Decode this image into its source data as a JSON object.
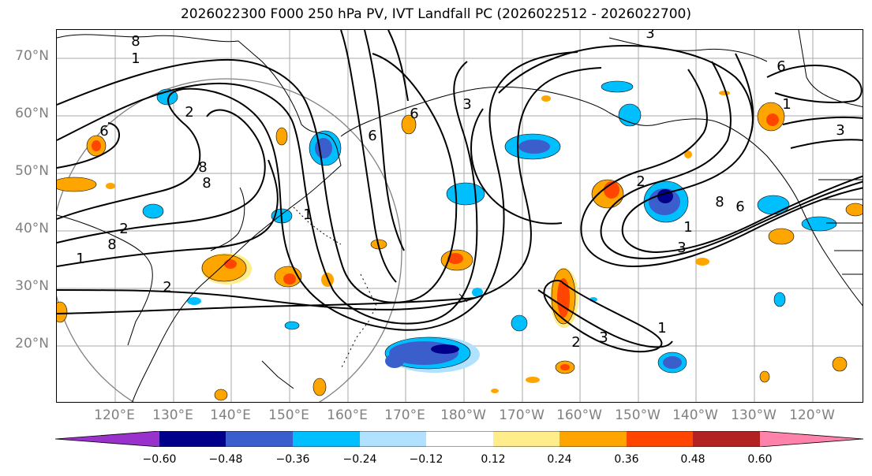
{
  "title": "2026022300 F000 250 hPa PV, IVT Landfall PC (2026022512 - 2026022700)",
  "map": {
    "latitude_labels": [
      "70°N",
      "60°N",
      "50°N",
      "40°N",
      "30°N",
      "20°N"
    ],
    "longitude_labels": [
      "120°E",
      "130°E",
      "140°E",
      "150°E",
      "160°E",
      "170°E",
      "180°W",
      "170°W",
      "160°W",
      "150°W",
      "140°W",
      "130°W",
      "120°W"
    ],
    "contour_labels": [
      {
        "text": "8"
      },
      {
        "text": "1"
      },
      {
        "text": "2"
      },
      {
        "text": "6"
      },
      {
        "text": "8"
      },
      {
        "text": "8"
      },
      {
        "text": "2"
      },
      {
        "text": "1"
      },
      {
        "text": "2"
      },
      {
        "text": "8"
      },
      {
        "text": "6"
      },
      {
        "text": "1"
      },
      {
        "text": "6"
      },
      {
        "text": "3"
      },
      {
        "text": "2"
      },
      {
        "text": "8"
      },
      {
        "text": "6"
      },
      {
        "text": "1"
      },
      {
        "text": "3"
      },
      {
        "text": "2"
      },
      {
        "text": "3"
      },
      {
        "text": "1"
      },
      {
        "text": "3"
      },
      {
        "text": "6"
      },
      {
        "text": "1"
      },
      {
        "text": "3"
      }
    ]
  },
  "colorbar": {
    "colors": [
      "#9932cc",
      "#00008b",
      "#3a5fcd",
      "#00bfff",
      "#b0e2ff",
      "#ffffff",
      "#ffec8b",
      "#ffa500",
      "#ff4500",
      "#b22222",
      "#ff82ab"
    ],
    "tick_labels": [
      "−0.60",
      "−0.48",
      "−0.36",
      "−0.24",
      "−0.12",
      "0.12",
      "0.24",
      "0.36",
      "0.48",
      "0.60"
    ]
  }
}
